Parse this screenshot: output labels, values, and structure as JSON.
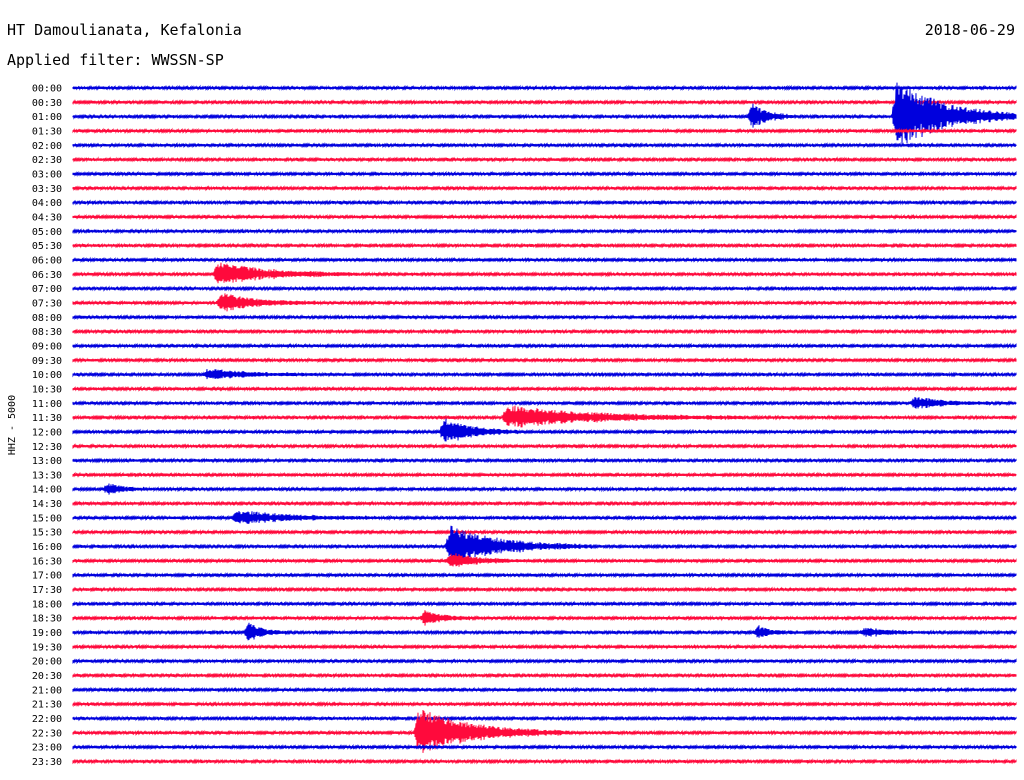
{
  "header": {
    "station": "HT Damoulianata, Kefalonia",
    "date": "2018-06-29",
    "filter": "Applied filter: WWSSN-SP"
  },
  "chart_data": {
    "type": "line",
    "title": "HT Damoulianata, Kefalonia",
    "subtitle": "Applied filter: WWSSN-SP",
    "ylabel": "HHZ - 5000",
    "xlabel": "",
    "date": "2018-06-29",
    "trace_colors": [
      "#0000dd",
      "#ff0a3c"
    ],
    "grid": false,
    "legend": "none",
    "rows": [
      "00:00",
      "00:30",
      "01:00",
      "01:30",
      "02:00",
      "02:30",
      "03:00",
      "03:30",
      "04:00",
      "04:30",
      "05:00",
      "05:30",
      "06:00",
      "06:30",
      "07:00",
      "07:30",
      "08:00",
      "08:30",
      "09:00",
      "09:30",
      "10:00",
      "10:30",
      "11:00",
      "11:30",
      "12:00",
      "12:30",
      "13:00",
      "13:30",
      "14:00",
      "14:30",
      "15:00",
      "15:30",
      "16:00",
      "16:30",
      "17:00",
      "17:30",
      "18:00",
      "18:30",
      "19:00",
      "19:30",
      "20:00",
      "20:30",
      "21:00",
      "21:30",
      "22:00",
      "22:30",
      "23:00",
      "23:30"
    ],
    "row_duration_minutes": 30,
    "events": [
      {
        "row": "01:00",
        "minute": 26.2,
        "amplitude": 36,
        "duration_minutes": 1.5
      },
      {
        "row": "01:00",
        "minute": 21.6,
        "amplitude": 12,
        "duration_minutes": 0.5
      },
      {
        "row": "06:30",
        "minute": 4.6,
        "amplitude": 12,
        "duration_minutes": 1.5
      },
      {
        "row": "07:30",
        "minute": 4.7,
        "amplitude": 10,
        "duration_minutes": 1.0
      },
      {
        "row": "10:00",
        "minute": 4.3,
        "amplitude": 5,
        "duration_minutes": 1.2
      },
      {
        "row": "11:00",
        "minute": 26.8,
        "amplitude": 6,
        "duration_minutes": 0.8
      },
      {
        "row": "11:30",
        "minute": 13.8,
        "amplitude": 12,
        "duration_minutes": 2.5
      },
      {
        "row": "12:00",
        "minute": 11.8,
        "amplitude": 14,
        "duration_minutes": 0.8
      },
      {
        "row": "14:00",
        "minute": 1.1,
        "amplitude": 5,
        "duration_minutes": 0.5
      },
      {
        "row": "15:00",
        "minute": 5.2,
        "amplitude": 7,
        "duration_minutes": 1.5
      },
      {
        "row": "16:00",
        "minute": 12.0,
        "amplitude": 20,
        "duration_minutes": 1.5
      },
      {
        "row": "16:30",
        "minute": 12.0,
        "amplitude": 8,
        "duration_minutes": 0.8
      },
      {
        "row": "18:30",
        "minute": 11.2,
        "amplitude": 8,
        "duration_minutes": 0.5
      },
      {
        "row": "19:00",
        "minute": 5.6,
        "amplitude": 9,
        "duration_minutes": 0.4
      },
      {
        "row": "19:00",
        "minute": 21.8,
        "amplitude": 6,
        "duration_minutes": 0.4
      },
      {
        "row": "19:00",
        "minute": 25.2,
        "amplitude": 4,
        "duration_minutes": 0.8
      },
      {
        "row": "22:30",
        "minute": 11.0,
        "amplitude": 24,
        "duration_minutes": 1.6
      }
    ]
  }
}
